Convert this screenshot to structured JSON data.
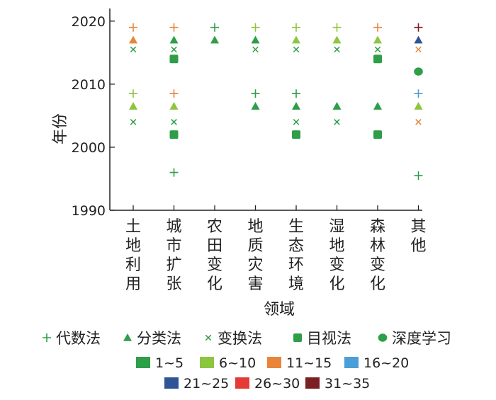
{
  "chart_data": {
    "type": "scatter",
    "title": "",
    "xlabel": "领域",
    "ylabel": "年份",
    "ylim": [
      1990,
      2022
    ],
    "yticks": [
      1990,
      2000,
      2010,
      2020
    ],
    "categories": [
      {
        "label": "土地利用",
        "chars": [
          "土",
          "地",
          "利",
          "用"
        ]
      },
      {
        "label": "城市扩张",
        "chars": [
          "城",
          "市",
          "扩",
          "张"
        ]
      },
      {
        "label": "农田变化",
        "chars": [
          "农",
          "田",
          "变",
          "化"
        ]
      },
      {
        "label": "地质灾害",
        "chars": [
          "地",
          "质",
          "灾",
          "害"
        ]
      },
      {
        "label": "生态环境",
        "chars": [
          "生",
          "态",
          "环",
          "境"
        ]
      },
      {
        "label": "湿地变化",
        "chars": [
          "湿",
          "地",
          "变",
          "化"
        ]
      },
      {
        "label": "森林变化",
        "chars": [
          "森",
          "林",
          "变",
          "化"
        ]
      },
      {
        "label": "其他",
        "chars": [
          "其",
          "他"
        ]
      }
    ],
    "methods": [
      {
        "key": "algebra",
        "name": "代数法",
        "symbol": "plus"
      },
      {
        "key": "classification",
        "name": "分类法",
        "symbol": "triangle"
      },
      {
        "key": "transform",
        "name": "变换法",
        "symbol": "cross"
      },
      {
        "key": "visual",
        "name": "目视法",
        "symbol": "square"
      },
      {
        "key": "deep",
        "name": "深度学习",
        "symbol": "circle"
      }
    ],
    "count_bins": [
      {
        "label": "1~5",
        "color": "#2e9e48"
      },
      {
        "label": "6~10",
        "color": "#8cc63f"
      },
      {
        "label": "11~15",
        "color": "#e8853a"
      },
      {
        "label": "16~20",
        "color": "#4a9fd8"
      },
      {
        "label": "21~25",
        "color": "#2f5597"
      },
      {
        "label": "26~30",
        "color": "#e53935"
      },
      {
        "label": "31~35",
        "color": "#7b1f24"
      }
    ],
    "points": [
      {
        "category": 0,
        "year": 2019,
        "method": "algebra",
        "bin": 2
      },
      {
        "category": 0,
        "year": 2017,
        "method": "classification",
        "bin": 2
      },
      {
        "category": 0,
        "year": 2015.5,
        "method": "transform",
        "bin": 0
      },
      {
        "category": 0,
        "year": 2008.5,
        "method": "algebra",
        "bin": 1
      },
      {
        "category": 0,
        "year": 2006.5,
        "method": "classification",
        "bin": 1
      },
      {
        "category": 0,
        "year": 2004,
        "method": "transform",
        "bin": 0
      },
      {
        "category": 1,
        "year": 2019,
        "method": "algebra",
        "bin": 2
      },
      {
        "category": 1,
        "year": 2017,
        "method": "classification",
        "bin": 0
      },
      {
        "category": 1,
        "year": 2015.5,
        "method": "transform",
        "bin": 0
      },
      {
        "category": 1,
        "year": 2014,
        "method": "visual",
        "bin": 0
      },
      {
        "category": 1,
        "year": 2008.5,
        "method": "algebra",
        "bin": 2
      },
      {
        "category": 1,
        "year": 2006.5,
        "method": "classification",
        "bin": 1
      },
      {
        "category": 1,
        "year": 2004,
        "method": "transform",
        "bin": 0
      },
      {
        "category": 1,
        "year": 2002,
        "method": "visual",
        "bin": 0
      },
      {
        "category": 1,
        "year": 1996,
        "method": "algebra",
        "bin": 0
      },
      {
        "category": 2,
        "year": 2019,
        "method": "algebra",
        "bin": 0
      },
      {
        "category": 2,
        "year": 2017,
        "method": "classification",
        "bin": 0
      },
      {
        "category": 3,
        "year": 2019,
        "method": "algebra",
        "bin": 1
      },
      {
        "category": 3,
        "year": 2017,
        "method": "classification",
        "bin": 0
      },
      {
        "category": 3,
        "year": 2015.5,
        "method": "transform",
        "bin": 0
      },
      {
        "category": 3,
        "year": 2008.5,
        "method": "algebra",
        "bin": 0
      },
      {
        "category": 3,
        "year": 2006.5,
        "method": "classification",
        "bin": 0
      },
      {
        "category": 4,
        "year": 2019,
        "method": "algebra",
        "bin": 1
      },
      {
        "category": 4,
        "year": 2017,
        "method": "classification",
        "bin": 1
      },
      {
        "category": 4,
        "year": 2015.5,
        "method": "transform",
        "bin": 0
      },
      {
        "category": 4,
        "year": 2008.5,
        "method": "algebra",
        "bin": 0
      },
      {
        "category": 4,
        "year": 2006.5,
        "method": "classification",
        "bin": 0
      },
      {
        "category": 4,
        "year": 2004,
        "method": "transform",
        "bin": 0
      },
      {
        "category": 4,
        "year": 2002,
        "method": "visual",
        "bin": 0
      },
      {
        "category": 5,
        "year": 2019,
        "method": "algebra",
        "bin": 1
      },
      {
        "category": 5,
        "year": 2017,
        "method": "classification",
        "bin": 1
      },
      {
        "category": 5,
        "year": 2015.5,
        "method": "transform",
        "bin": 0
      },
      {
        "category": 5,
        "year": 2006.5,
        "method": "classification",
        "bin": 0
      },
      {
        "category": 5,
        "year": 2004,
        "method": "transform",
        "bin": 0
      },
      {
        "category": 6,
        "year": 2019,
        "method": "algebra",
        "bin": 2
      },
      {
        "category": 6,
        "year": 2017,
        "method": "classification",
        "bin": 1
      },
      {
        "category": 6,
        "year": 2015.5,
        "method": "transform",
        "bin": 0
      },
      {
        "category": 6,
        "year": 2014,
        "method": "visual",
        "bin": 0
      },
      {
        "category": 6,
        "year": 2006.5,
        "method": "classification",
        "bin": 0
      },
      {
        "category": 6,
        "year": 2002,
        "method": "visual",
        "bin": 0
      },
      {
        "category": 7,
        "year": 2019,
        "method": "algebra",
        "bin": 6
      },
      {
        "category": 7,
        "year": 2017,
        "method": "classification",
        "bin": 4
      },
      {
        "category": 7,
        "year": 2015.5,
        "method": "transform",
        "bin": 2
      },
      {
        "category": 7,
        "year": 2012,
        "method": "deep",
        "bin": 0
      },
      {
        "category": 7,
        "year": 2008.5,
        "method": "algebra",
        "bin": 3
      },
      {
        "category": 7,
        "year": 2006.5,
        "method": "classification",
        "bin": 1
      },
      {
        "category": 7,
        "year": 2004,
        "method": "transform",
        "bin": 2
      },
      {
        "category": 7,
        "year": 1995.5,
        "method": "algebra",
        "bin": 0
      }
    ]
  }
}
